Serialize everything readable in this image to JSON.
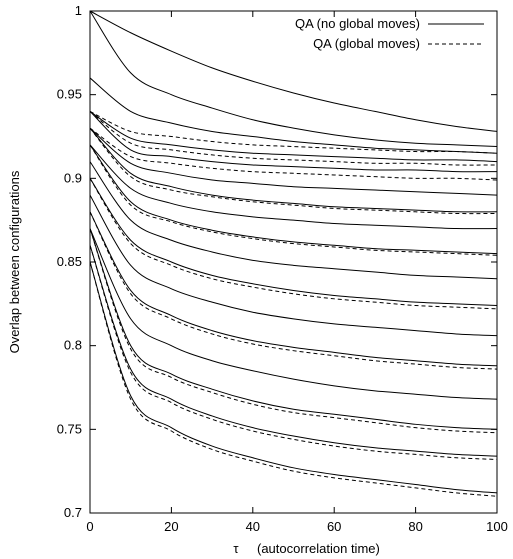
{
  "chart_data": {
    "type": "line",
    "title": "",
    "xlabel_symbol": "τ",
    "xlabel": "(autocorrelation time)",
    "ylabel": "Overlap between configurations",
    "xlim": [
      0,
      100
    ],
    "ylim": [
      0.7,
      1.0
    ],
    "x_ticks": [
      "0",
      "20",
      "40",
      "60",
      "80",
      "100"
    ],
    "y_ticks": [
      "0.7",
      "0.75",
      "0.8",
      "0.85",
      "0.9",
      "0.95",
      "1"
    ],
    "legend_position": "top-right",
    "series_styles": [
      {
        "name": "QA (no global moves)",
        "dash": "solid"
      },
      {
        "name": "QA (global moves)",
        "dash": "dashed"
      }
    ],
    "x": [
      0,
      10,
      20,
      30,
      40,
      50,
      60,
      70,
      80,
      90,
      100
    ],
    "series": [
      {
        "style": 0,
        "values": [
          1.0,
          0.987,
          0.976,
          0.966,
          0.958,
          0.951,
          0.945,
          0.94,
          0.935,
          0.931,
          0.928
        ]
      },
      {
        "style": 0,
        "values": [
          1.0,
          0.963,
          0.95,
          0.942,
          0.935,
          0.93,
          0.926,
          0.923,
          0.921,
          0.92,
          0.919
        ]
      },
      {
        "style": 0,
        "values": [
          0.96,
          0.94,
          0.933,
          0.928,
          0.925,
          0.922,
          0.92,
          0.918,
          0.917,
          0.916,
          0.915
        ]
      },
      {
        "style": 1,
        "values": [
          0.94,
          0.928,
          0.925,
          0.922,
          0.92,
          0.919,
          0.918,
          0.917,
          0.916,
          0.916,
          0.915
        ]
      },
      {
        "style": 0,
        "values": [
          0.94,
          0.924,
          0.92,
          0.917,
          0.915,
          0.914,
          0.913,
          0.912,
          0.911,
          0.911,
          0.91
        ]
      },
      {
        "style": 1,
        "values": [
          0.94,
          0.921,
          0.917,
          0.914,
          0.912,
          0.911,
          0.91,
          0.909,
          0.909,
          0.908,
          0.908
        ]
      },
      {
        "style": 0,
        "values": [
          0.94,
          0.917,
          0.913,
          0.91,
          0.908,
          0.907,
          0.906,
          0.905,
          0.905,
          0.904,
          0.904
        ]
      },
      {
        "style": 1,
        "values": [
          0.93,
          0.913,
          0.909,
          0.906,
          0.904,
          0.903,
          0.902,
          0.901,
          0.9,
          0.9,
          0.899
        ]
      },
      {
        "style": 0,
        "values": [
          0.93,
          0.909,
          0.903,
          0.899,
          0.897,
          0.895,
          0.894,
          0.893,
          0.892,
          0.891,
          0.89
        ]
      },
      {
        "style": 0,
        "values": [
          0.93,
          0.903,
          0.895,
          0.89,
          0.887,
          0.885,
          0.883,
          0.882,
          0.881,
          0.88,
          0.88
        ]
      },
      {
        "style": 1,
        "values": [
          0.93,
          0.901,
          0.893,
          0.889,
          0.886,
          0.884,
          0.882,
          0.881,
          0.88,
          0.879,
          0.879
        ]
      },
      {
        "style": 0,
        "values": [
          0.92,
          0.894,
          0.885,
          0.88,
          0.877,
          0.875,
          0.873,
          0.872,
          0.871,
          0.87,
          0.87
        ]
      },
      {
        "style": 0,
        "values": [
          0.92,
          0.886,
          0.875,
          0.869,
          0.865,
          0.862,
          0.86,
          0.858,
          0.857,
          0.856,
          0.855
        ]
      },
      {
        "style": 1,
        "values": [
          0.92,
          0.884,
          0.874,
          0.868,
          0.864,
          0.861,
          0.859,
          0.857,
          0.856,
          0.855,
          0.854
        ]
      },
      {
        "style": 0,
        "values": [
          0.91,
          0.875,
          0.863,
          0.856,
          0.851,
          0.848,
          0.846,
          0.844,
          0.842,
          0.841,
          0.84
        ]
      },
      {
        "style": 0,
        "values": [
          0.9,
          0.863,
          0.85,
          0.842,
          0.837,
          0.833,
          0.83,
          0.828,
          0.826,
          0.825,
          0.824
        ]
      },
      {
        "style": 1,
        "values": [
          0.9,
          0.861,
          0.848,
          0.84,
          0.835,
          0.831,
          0.828,
          0.826,
          0.824,
          0.823,
          0.822
        ]
      },
      {
        "style": 0,
        "values": [
          0.89,
          0.848,
          0.834,
          0.826,
          0.82,
          0.816,
          0.813,
          0.811,
          0.809,
          0.807,
          0.806
        ]
      },
      {
        "style": 0,
        "values": [
          0.88,
          0.833,
          0.818,
          0.809,
          0.803,
          0.799,
          0.796,
          0.793,
          0.791,
          0.789,
          0.788
        ]
      },
      {
        "style": 1,
        "values": [
          0.88,
          0.831,
          0.816,
          0.807,
          0.801,
          0.797,
          0.794,
          0.791,
          0.789,
          0.787,
          0.786
        ]
      },
      {
        "style": 0,
        "values": [
          0.87,
          0.816,
          0.8,
          0.791,
          0.785,
          0.78,
          0.776,
          0.773,
          0.771,
          0.769,
          0.768
        ]
      },
      {
        "style": 0,
        "values": [
          0.87,
          0.8,
          0.783,
          0.774,
          0.767,
          0.762,
          0.759,
          0.756,
          0.753,
          0.751,
          0.75
        ]
      },
      {
        "style": 1,
        "values": [
          0.87,
          0.798,
          0.781,
          0.772,
          0.765,
          0.76,
          0.757,
          0.754,
          0.751,
          0.749,
          0.748
        ]
      },
      {
        "style": 0,
        "values": [
          0.86,
          0.786,
          0.768,
          0.758,
          0.751,
          0.746,
          0.742,
          0.739,
          0.737,
          0.735,
          0.734
        ]
      },
      {
        "style": 1,
        "values": [
          0.86,
          0.784,
          0.766,
          0.756,
          0.749,
          0.744,
          0.74,
          0.737,
          0.735,
          0.733,
          0.732
        ]
      },
      {
        "style": 0,
        "values": [
          0.85,
          0.77,
          0.751,
          0.74,
          0.733,
          0.727,
          0.723,
          0.72,
          0.717,
          0.714,
          0.712
        ]
      },
      {
        "style": 1,
        "values": [
          0.85,
          0.768,
          0.749,
          0.738,
          0.731,
          0.725,
          0.721,
          0.718,
          0.715,
          0.712,
          0.71
        ]
      }
    ]
  }
}
